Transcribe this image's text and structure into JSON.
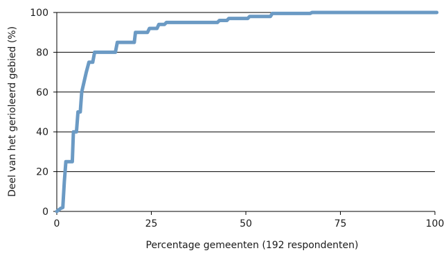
{
  "chart_data": {
    "type": "line",
    "title": "",
    "xlabel": "Percentage gemeenten (192 respondenten)",
    "ylabel": "Deel van het gerioleerd gebied (%)",
    "xlim": [
      0,
      100
    ],
    "ylim": [
      0,
      100
    ],
    "xticks": [
      "0",
      "25",
      "50",
      "75",
      "100"
    ],
    "yticks": [
      "0",
      "20",
      "40",
      "60",
      "80",
      "100"
    ],
    "grid": "horizontal",
    "legend": "none",
    "line_color": "#6b9ac4",
    "series": [
      {
        "x": [
          0,
          1.0,
          1.6,
          2.0,
          2.4,
          3.0,
          4.1,
          4.4,
          5.2,
          5.6,
          6.2,
          6.6,
          7.2,
          7.8,
          8.5,
          9.5,
          10.0,
          10.5,
          15.5,
          16.0,
          16.5,
          20.5,
          20.8,
          21.5,
          24.0,
          24.5,
          26.5,
          27.0,
          28.5,
          29.0,
          42.5,
          43.0,
          45.0,
          45.5,
          50.5,
          51.0,
          56.5,
          57.0,
          67.0,
          67.5,
          100.5
        ],
        "y": [
          0,
          1.5,
          2,
          15,
          25,
          25,
          25,
          40,
          40,
          50,
          50,
          60,
          65,
          70,
          75,
          75,
          80,
          80,
          80,
          85,
          85,
          85,
          90,
          90,
          90,
          92,
          92,
          94,
          94,
          95,
          95,
          96,
          96,
          97,
          97,
          98,
          98,
          99.5,
          99.5,
          100,
          100
        ]
      }
    ]
  }
}
